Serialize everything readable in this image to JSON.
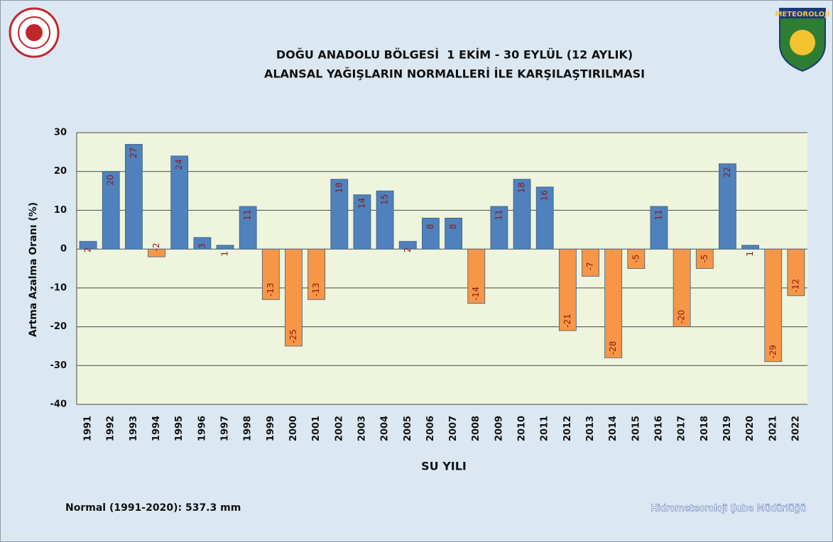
{
  "chart_data": {
    "type": "bar",
    "title": "DOĞU ANADOLU BÖLGESİ  1 EKİM - 30 EYLÜL (12 AYLIK)",
    "subtitle": "ALANSAL YAĞIŞLARIN NORMALLERİ İLE KARŞILAŞTIRILMASI",
    "x_label": "SU YILI",
    "y_label": "Artma Azalma Oranı (%)",
    "categories": [
      "1991",
      "1992",
      "1993",
      "1994",
      "1995",
      "1996",
      "1997",
      "1998",
      "1999",
      "2000",
      "2001",
      "2002",
      "2003",
      "2004",
      "2005",
      "2006",
      "2007",
      "2008",
      "2009",
      "2010",
      "2011",
      "2012",
      "2013",
      "2014",
      "2015",
      "2016",
      "2017",
      "2018",
      "2019",
      "2020",
      "2021",
      "2022"
    ],
    "values": [
      2,
      20,
      27,
      -2,
      24,
      3,
      1,
      11,
      -13,
      -25,
      -13,
      18,
      14,
      15,
      2,
      8,
      8,
      -14,
      11,
      18,
      16,
      -21,
      -7,
      -28,
      -5,
      11,
      -20,
      -5,
      22,
      1,
      -29,
      -12
    ],
    "color_positive": "#4f81bd",
    "color_negative": "#f79646",
    "ylim": [
      -40,
      30
    ],
    "yticks": [
      -40,
      -30,
      -20,
      -10,
      0,
      10,
      20,
      30
    ],
    "grid": true,
    "annotations": [
      "Normal (1991-2020): 537.3 mm",
      "Hidrometeoroloji Şube Müdürlüğü"
    ],
    "logo_text": "METEOROLOJİ"
  }
}
